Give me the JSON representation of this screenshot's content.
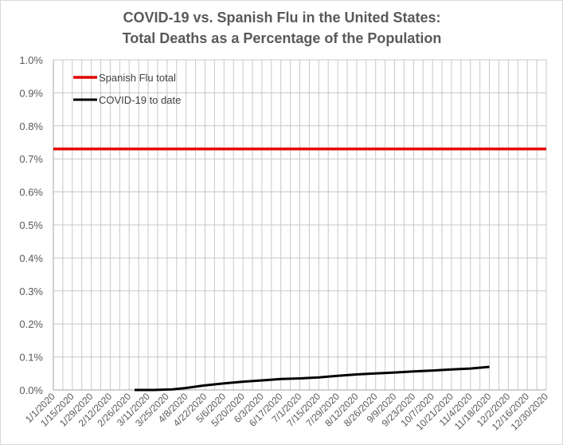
{
  "chart_data": {
    "type": "line",
    "title": [
      "COVID-19 vs. Spanish  Flu in the United States:",
      "Total Deaths as a Percentage of the Population"
    ],
    "xlabel": "",
    "ylabel": "",
    "ylim": [
      0,
      0.01
    ],
    "y_ticks": [
      "0.0%",
      "0.1%",
      "0.2%",
      "0.3%",
      "0.4%",
      "0.5%",
      "0.6%",
      "0.7%",
      "0.8%",
      "0.9%",
      "1.0%"
    ],
    "x_ticks": [
      "1/1/2020",
      "1/15/2020",
      "1/29/2020",
      "2/12/2020",
      "2/26/2020",
      "3/11/2020",
      "3/25/2020",
      "4/8/2020",
      "4/22/2020",
      "5/6/2020",
      "5/20/2020",
      "6/3/2020",
      "6/17/2020",
      "7/1/2020",
      "7/15/2020",
      "7/29/2020",
      "8/12/2020",
      "8/26/2020",
      "9/9/2020",
      "9/23/2020",
      "10/7/2020",
      "10/21/2020",
      "11/4/2020",
      "11/18/2020",
      "12/2/2020",
      "12/16/2020",
      "12/30/2020"
    ],
    "grid": true,
    "legend_position": "top-left",
    "series": [
      {
        "name": "Spanish Flu total",
        "color": "#e30000",
        "style": "horizontal",
        "value": 0.0073
      },
      {
        "name": "COVID-19 to date",
        "color": "#000000",
        "points": [
          [
            "3/1/2020",
            0.0
          ],
          [
            "3/15/2020",
            0.0
          ],
          [
            "3/29/2020",
            2e-05
          ],
          [
            "4/8/2020",
            6e-05
          ],
          [
            "4/22/2020",
            0.00014
          ],
          [
            "5/6/2020",
            0.0002
          ],
          [
            "5/20/2020",
            0.00025
          ],
          [
            "6/3/2020",
            0.00029
          ],
          [
            "6/17/2020",
            0.00033
          ],
          [
            "7/1/2020",
            0.00035
          ],
          [
            "7/15/2020",
            0.00038
          ],
          [
            "7/29/2020",
            0.00043
          ],
          [
            "8/12/2020",
            0.00047
          ],
          [
            "8/26/2020",
            0.0005
          ],
          [
            "9/9/2020",
            0.00053
          ],
          [
            "9/23/2020",
            0.00056
          ],
          [
            "10/7/2020",
            0.00059
          ],
          [
            "10/21/2020",
            0.00062
          ],
          [
            "11/4/2020",
            0.00065
          ],
          [
            "11/18/2020",
            0.0007
          ]
        ]
      }
    ]
  }
}
